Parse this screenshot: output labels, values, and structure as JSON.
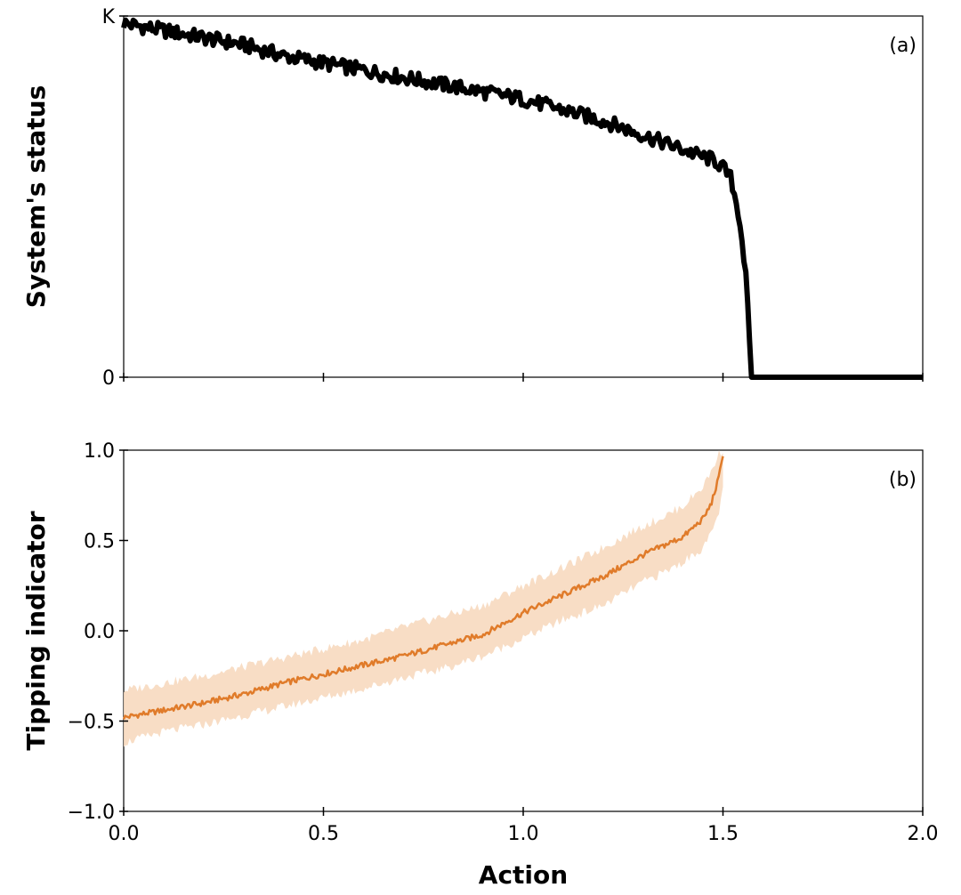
{
  "chart_data": [
    {
      "panel": "a",
      "type": "line",
      "panel_label": "(a)",
      "ylabel": "System's status",
      "xlabel": "",
      "xlim": [
        0.0,
        2.0
      ],
      "ylim": [
        0.0,
        1.0
      ],
      "y_ticks": [
        {
          "value": 1.0,
          "label": "K"
        },
        {
          "value": 0.0,
          "label": "0"
        }
      ],
      "x_ticks": [
        0.0,
        0.5,
        1.0,
        1.5,
        2.0
      ],
      "show_x_tick_labels": false,
      "grid": false,
      "series": [
        {
          "color": "#000000",
          "x": [
            0.0,
            0.1,
            0.2,
            0.3,
            0.4,
            0.5,
            0.6,
            0.7,
            0.8,
            0.9,
            1.0,
            1.1,
            1.2,
            1.3,
            1.4,
            1.45,
            1.48,
            1.5,
            1.52,
            1.54,
            1.55,
            1.56,
            1.57,
            1.6,
            1.8,
            2.0
          ],
          "y": [
            0.98,
            0.96,
            0.94,
            0.92,
            0.89,
            0.87,
            0.85,
            0.83,
            0.81,
            0.79,
            0.77,
            0.74,
            0.71,
            0.67,
            0.63,
            0.61,
            0.6,
            0.58,
            0.55,
            0.45,
            0.36,
            0.24,
            0.0,
            0.0,
            0.0,
            0.0
          ],
          "noise_amplitude": 0.02
        }
      ]
    },
    {
      "panel": "b",
      "type": "line",
      "panel_label": "(b)",
      "ylabel": "Tipping indicator",
      "xlabel": "Action",
      "xlim": [
        0.0,
        2.0
      ],
      "ylim": [
        -1.0,
        1.0
      ],
      "y_ticks": [
        {
          "value": 1.0,
          "label": "1.0"
        },
        {
          "value": 0.5,
          "label": "0.5"
        },
        {
          "value": 0.0,
          "label": "0.0"
        },
        {
          "value": -0.5,
          "label": "−0.5"
        },
        {
          "value": -1.0,
          "label": "−1.0"
        }
      ],
      "x_ticks": [
        {
          "value": 0.0,
          "label": "0.0"
        },
        {
          "value": 0.5,
          "label": "0.5"
        },
        {
          "value": 1.0,
          "label": "1.0"
        },
        {
          "value": 1.5,
          "label": "1.5"
        },
        {
          "value": 2.0,
          "label": "2.0"
        }
      ],
      "show_x_tick_labels": true,
      "grid": false,
      "series": [
        {
          "color": "#e07b2a",
          "band_color": "#f7d9bf",
          "x": [
            0.0,
            0.1,
            0.2,
            0.3,
            0.4,
            0.5,
            0.6,
            0.7,
            0.8,
            0.9,
            1.0,
            1.1,
            1.2,
            1.3,
            1.35,
            1.4,
            1.45,
            1.47,
            1.49,
            1.5
          ],
          "y": [
            -0.48,
            -0.44,
            -0.4,
            -0.35,
            -0.29,
            -0.24,
            -0.19,
            -0.14,
            -0.08,
            -0.02,
            0.1,
            0.2,
            0.3,
            0.42,
            0.47,
            0.52,
            0.62,
            0.7,
            0.85,
            0.98
          ],
          "band_low": [
            -0.62,
            -0.56,
            -0.52,
            -0.47,
            -0.42,
            -0.37,
            -0.32,
            -0.26,
            -0.21,
            -0.14,
            -0.04,
            0.06,
            0.14,
            0.27,
            0.32,
            0.38,
            0.46,
            0.53,
            0.66,
            0.78
          ],
          "band_high": [
            -0.33,
            -0.29,
            -0.25,
            -0.2,
            -0.15,
            -0.1,
            -0.05,
            0.02,
            0.08,
            0.14,
            0.25,
            0.35,
            0.46,
            0.58,
            0.63,
            0.69,
            0.8,
            0.88,
            0.98,
            1.0
          ]
        }
      ]
    }
  ]
}
